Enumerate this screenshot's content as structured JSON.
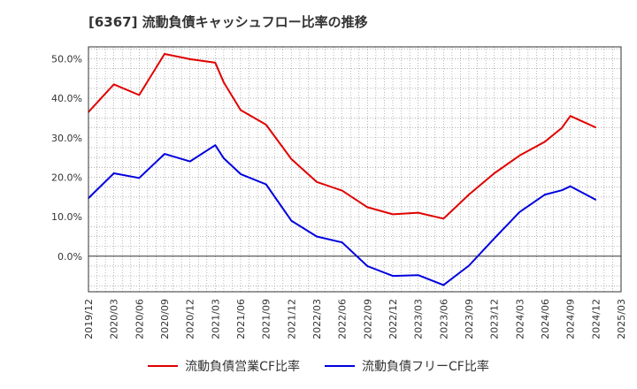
{
  "header": {
    "title": "[6367]  流動負債キャッシュフロー比率の推移"
  },
  "colors": {
    "series1": "#e00000",
    "series2": "#0000dd",
    "grid": "#888888",
    "frame": "#333333",
    "zero_line": "#333333"
  },
  "chart_data": {
    "type": "line",
    "title": "[6367]  流動負債キャッシュフロー比率の推移",
    "xlabel": "",
    "ylabel": "",
    "x_ticks": [
      "2019/12",
      "2020/03",
      "2020/06",
      "2020/09",
      "2020/12",
      "2021/03",
      "2021/06",
      "2021/09",
      "2021/12",
      "2022/03",
      "2022/06",
      "2022/09",
      "2022/12",
      "2023/03",
      "2023/06",
      "2023/09",
      "2023/12",
      "2024/03",
      "2024/06",
      "2024/09",
      "2024/12",
      "2025/03"
    ],
    "y_ticks": [
      "0.0%",
      "10.0%",
      "20.0%",
      "30.0%",
      "40.0%",
      "50.0%"
    ],
    "ylim": [
      -9,
      53
    ],
    "grid": true,
    "legend_position": "bottom",
    "x": [
      "2019/12",
      "2020/03",
      "2020/06",
      "2020/09",
      "2020/12",
      "2021/03",
      "2021/04",
      "2021/06",
      "2021/09",
      "2021/12",
      "2022/03",
      "2022/06",
      "2022/09",
      "2022/12",
      "2023/03",
      "2023/06",
      "2023/09",
      "2023/12",
      "2024/03",
      "2024/06",
      "2024/08",
      "2024/09",
      "2024/12"
    ],
    "series": [
      {
        "name": "流動負債営業CF比率",
        "color": "#e00000",
        "values": [
          36.5,
          43.5,
          40.8,
          51.2,
          49.9,
          49.0,
          44.0,
          37.0,
          33.3,
          24.6,
          18.8,
          16.6,
          12.4,
          10.6,
          11.0,
          9.5,
          15.6,
          21.0,
          25.5,
          29.0,
          32.5,
          35.5,
          32.6
        ]
      },
      {
        "name": "流動負債フリーCF比率",
        "color": "#0000dd",
        "values": [
          14.7,
          21.0,
          19.8,
          25.9,
          24.0,
          28.1,
          24.8,
          20.8,
          18.2,
          9.0,
          5.0,
          3.5,
          -2.5,
          -5.0,
          -4.8,
          -7.3,
          -2.4,
          4.5,
          11.2,
          15.6,
          16.7,
          17.7,
          14.3
        ]
      }
    ]
  }
}
